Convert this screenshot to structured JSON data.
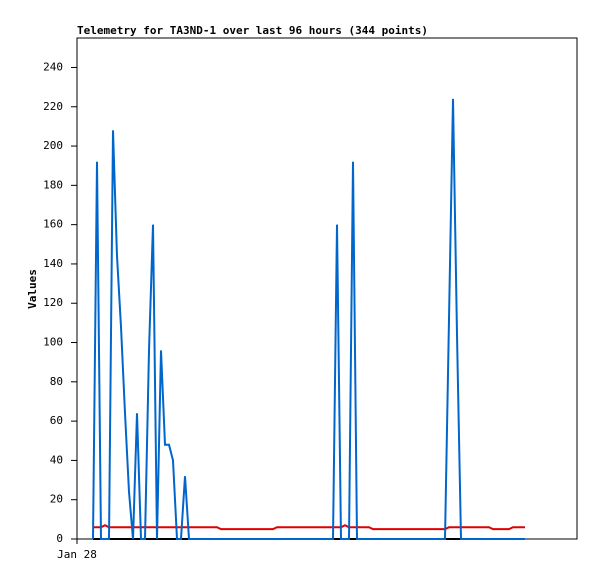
{
  "chart_data": {
    "type": "line",
    "title": "Telemetry for TA3ND-1 over last 96 hours (344 points)",
    "y_label": "Values",
    "categories": [
      "Jan 28",
      null,
      null,
      null,
      null,
      null,
      null,
      null,
      null,
      null,
      null,
      null,
      null,
      null,
      null,
      null,
      null,
      null,
      null,
      null,
      null,
      null,
      null,
      null,
      null,
      null,
      null,
      null,
      null,
      null,
      null,
      null,
      null,
      null,
      null,
      null,
      null,
      null,
      null,
      null,
      null,
      null,
      null,
      null,
      null,
      null,
      null,
      null,
      null,
      null,
      null,
      null,
      null,
      null,
      null,
      null,
      null,
      null,
      null,
      null,
      null,
      null,
      null,
      null,
      null,
      null,
      null,
      null,
      null,
      null,
      null,
      null,
      null,
      null,
      null,
      null,
      null,
      null,
      null,
      null,
      null,
      null,
      null,
      null,
      null,
      null,
      null,
      null,
      null,
      null,
      null,
      null,
      null,
      null,
      null,
      null,
      null,
      null,
      null,
      null,
      null,
      null,
      null,
      null,
      null,
      null,
      null,
      null,
      null,
      null,
      null,
      null,
      null
    ],
    "series": [
      {
        "color": "#000000",
        "values": [
          null,
          null,
          null,
          null,
          0,
          0,
          0,
          0,
          0,
          0,
          0,
          0,
          0,
          0,
          0,
          0,
          0,
          0,
          0,
          0,
          0,
          0,
          0,
          0,
          0,
          0,
          0,
          0,
          0,
          0,
          0,
          0,
          0,
          0,
          0,
          0,
          0,
          0,
          0,
          0,
          0,
          0,
          0,
          0,
          0,
          0,
          0,
          0,
          0,
          0,
          0,
          0,
          0,
          0,
          0,
          0,
          0,
          0,
          0,
          0,
          0,
          0,
          0,
          0,
          0,
          0,
          0,
          0,
          0,
          0,
          0,
          0,
          0,
          0,
          0,
          0,
          0,
          0,
          0,
          0,
          0,
          0,
          0,
          0,
          0,
          0,
          0,
          0,
          0,
          0,
          0,
          0,
          0,
          0,
          0,
          0,
          0,
          0,
          0,
          0,
          0,
          0,
          0,
          0,
          0,
          0,
          0,
          0,
          0,
          0,
          0,
          0,
          0
        ]
      },
      {
        "color": "#e00000",
        "values": [
          null,
          null,
          null,
          null,
          6,
          6,
          6,
          7,
          6,
          6,
          6,
          6,
          6,
          6,
          6,
          6,
          6,
          6,
          6,
          6,
          6,
          6,
          6,
          6,
          6,
          6,
          6,
          6,
          6,
          6,
          6,
          6,
          6,
          6,
          6,
          6,
          5,
          5,
          5,
          5,
          5,
          5,
          5,
          5,
          5,
          5,
          5,
          5,
          5,
          5,
          6,
          6,
          6,
          6,
          6,
          6,
          6,
          6,
          6,
          6,
          6,
          6,
          6,
          6,
          6,
          6,
          6,
          7,
          6,
          6,
          6,
          6,
          6,
          6,
          5,
          5,
          5,
          5,
          5,
          5,
          5,
          5,
          5,
          5,
          5,
          5,
          5,
          5,
          5,
          5,
          5,
          5,
          5,
          6,
          6,
          6,
          6,
          6,
          6,
          6,
          6,
          6,
          6,
          6,
          5,
          5,
          5,
          5,
          5,
          6,
          6,
          6,
          6
        ]
      },
      {
        "color": "#0066cc",
        "values": [
          null,
          null,
          null,
          null,
          0,
          192,
          0,
          0,
          0,
          208,
          144,
          108,
          64,
          24,
          0,
          64,
          0,
          0,
          96,
          160,
          0,
          96,
          48,
          48,
          40,
          0,
          0,
          32,
          0,
          0,
          0,
          0,
          0,
          0,
          0,
          0,
          0,
          0,
          0,
          0,
          0,
          0,
          0,
          0,
          0,
          0,
          0,
          0,
          0,
          0,
          0,
          0,
          0,
          0,
          0,
          0,
          0,
          0,
          0,
          0,
          0,
          0,
          0,
          0,
          0,
          160,
          0,
          0,
          0,
          192,
          0,
          0,
          0,
          0,
          0,
          0,
          0,
          0,
          0,
          0,
          0,
          0,
          0,
          0,
          0,
          0,
          0,
          0,
          0,
          0,
          0,
          0,
          0,
          112,
          224,
          104,
          0,
          0,
          0,
          0,
          0,
          0,
          0,
          0,
          0,
          0,
          0,
          0,
          0,
          0,
          0,
          0,
          0
        ]
      }
    ],
    "ylim": [
      0,
      255
    ],
    "yticks": [
      0,
      20,
      40,
      60,
      80,
      100,
      120,
      140,
      160,
      180,
      200,
      220,
      240
    ],
    "grid": false
  }
}
